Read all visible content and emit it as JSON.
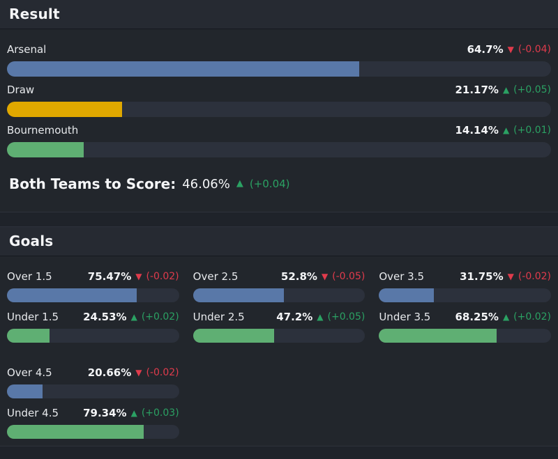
{
  "colors": {
    "page_background": "#1f232a",
    "card_background": "#22262c",
    "header_strip": "#262a32",
    "bar_track": "#2c313c",
    "bar_blue": "#5978a8",
    "bar_yellow": "#e0a800",
    "bar_green": "#5faf73",
    "trend_up_green": "#2ba163",
    "trend_down_red": "#e03b4c"
  },
  "result": {
    "title": "Result",
    "rows": [
      {
        "label": "Arsenal",
        "pct": "64.7%",
        "value": 64.7,
        "direction": "down",
        "arrow": "▼",
        "change": "(-0.04)",
        "bar": "blue"
      },
      {
        "label": "Draw",
        "pct": "21.17%",
        "value": 21.17,
        "direction": "up",
        "arrow": "▲",
        "change": "(+0.05)",
        "bar": "yellow"
      },
      {
        "label": "Bournemouth",
        "pct": "14.14%",
        "value": 14.14,
        "direction": "up",
        "arrow": "▲",
        "change": "(+0.01)",
        "bar": "green"
      }
    ],
    "btts": {
      "label": "Both Teams to Score:",
      "pct": "46.06%",
      "direction": "up",
      "arrow": "▲",
      "change": "(+0.04)"
    }
  },
  "goals": {
    "title": "Goals",
    "pairs": [
      {
        "over": {
          "label": "Over 1.5",
          "pct": "75.47%",
          "value": 75.47,
          "direction": "down",
          "arrow": "▼",
          "change": "(-0.02)",
          "bar": "blue"
        },
        "under": {
          "label": "Under 1.5",
          "pct": "24.53%",
          "value": 24.53,
          "direction": "up",
          "arrow": "▲",
          "change": "(+0.02)",
          "bar": "green"
        }
      },
      {
        "over": {
          "label": "Over 2.5",
          "pct": "52.8%",
          "value": 52.8,
          "direction": "down",
          "arrow": "▼",
          "change": "(-0.05)",
          "bar": "blue"
        },
        "under": {
          "label": "Under 2.5",
          "pct": "47.2%",
          "value": 47.2,
          "direction": "up",
          "arrow": "▲",
          "change": "(+0.05)",
          "bar": "green"
        }
      },
      {
        "over": {
          "label": "Over 3.5",
          "pct": "31.75%",
          "value": 31.75,
          "direction": "down",
          "arrow": "▼",
          "change": "(-0.02)",
          "bar": "blue"
        },
        "under": {
          "label": "Under 3.5",
          "pct": "68.25%",
          "value": 68.25,
          "direction": "up",
          "arrow": "▲",
          "change": "(+0.02)",
          "bar": "green"
        }
      },
      {
        "over": {
          "label": "Over 4.5",
          "pct": "20.66%",
          "value": 20.66,
          "direction": "down",
          "arrow": "▼",
          "change": "(-0.02)",
          "bar": "blue"
        },
        "under": {
          "label": "Under 4.5",
          "pct": "79.34%",
          "value": 79.34,
          "direction": "up",
          "arrow": "▲",
          "change": "(+0.03)",
          "bar": "green"
        }
      }
    ]
  }
}
